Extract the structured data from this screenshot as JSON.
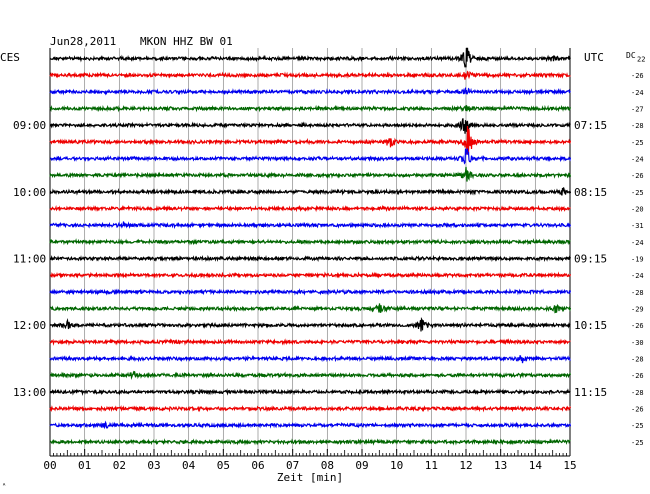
{
  "header": {
    "date": "Jun28,2011",
    "station": "MKON HHZ BW 01",
    "left_zone": "CES",
    "right_zone": "UTC",
    "dc_label": "DC"
  },
  "footer": {
    "xlabel": "Zeit [min]",
    "corner_mark": "ᴬ"
  },
  "chart_data": {
    "type": "line",
    "title": "Jun28,2011   MKON HHZ BW 01",
    "xlabel": "Zeit [min]",
    "ylabel": "",
    "x_ticks": [
      "00",
      "01",
      "02",
      "03",
      "04",
      "05",
      "06",
      "07",
      "08",
      "09",
      "10",
      "11",
      "12",
      "13",
      "14",
      "15"
    ],
    "xlim": [
      0,
      15
    ],
    "grid": true,
    "colors": [
      "#000000",
      "#ee0000",
      "#0000ee",
      "#006600"
    ],
    "left_time_labels": [
      {
        "trace": 5,
        "label": "09:00"
      },
      {
        "trace": 9,
        "label": "10:00"
      },
      {
        "trace": 13,
        "label": "11:00"
      },
      {
        "trace": 17,
        "label": "12:00"
      },
      {
        "trace": 21,
        "label": "13:00"
      }
    ],
    "right_time_labels": [
      {
        "trace": 5,
        "label": "07:15"
      },
      {
        "trace": 9,
        "label": "08:15"
      },
      {
        "trace": 13,
        "label": "09:15"
      },
      {
        "trace": 17,
        "label": "10:15"
      },
      {
        "trace": 21,
        "label": "11:15"
      }
    ],
    "dc_offsets": [
      "22",
      "-26",
      "-24",
      "-27",
      "-28",
      "-25",
      "-24",
      "-26",
      "-25",
      "-20",
      "-31",
      "-24",
      "-19",
      "-24",
      "-28",
      "-29",
      "-26",
      "-30",
      "-28",
      "-26",
      "-28",
      "-26",
      "-25",
      "-25"
    ],
    "events": [
      {
        "trace": 0,
        "minute": 14.5,
        "amp": 3
      },
      {
        "trace": 0,
        "minute": 12.0,
        "amp": 14
      },
      {
        "trace": 1,
        "minute": 12.0,
        "amp": 6
      },
      {
        "trace": 2,
        "minute": 12.0,
        "amp": 4
      },
      {
        "trace": 3,
        "minute": 12.0,
        "amp": 3
      },
      {
        "trace": 4,
        "minute": 11.95,
        "amp": 10
      },
      {
        "trace": 5,
        "minute": 9.8,
        "amp": 7
      },
      {
        "trace": 5,
        "minute": 12.05,
        "amp": 20
      },
      {
        "trace": 6,
        "minute": 12.0,
        "amp": 14
      },
      {
        "trace": 7,
        "minute": 12.0,
        "amp": 8
      },
      {
        "trace": 8,
        "minute": 14.8,
        "amp": 4
      },
      {
        "trace": 10,
        "minute": 2.1,
        "amp": 3
      },
      {
        "trace": 15,
        "minute": 9.5,
        "amp": 4
      },
      {
        "trace": 15,
        "minute": 14.6,
        "amp": 5
      },
      {
        "trace": 16,
        "minute": 0.5,
        "amp": 5
      },
      {
        "trace": 16,
        "minute": 10.7,
        "amp": 8
      },
      {
        "trace": 18,
        "minute": 13.6,
        "amp": 4
      },
      {
        "trace": 19,
        "minute": 2.4,
        "amp": 4
      },
      {
        "trace": 22,
        "minute": 1.6,
        "amp": 3
      }
    ]
  }
}
